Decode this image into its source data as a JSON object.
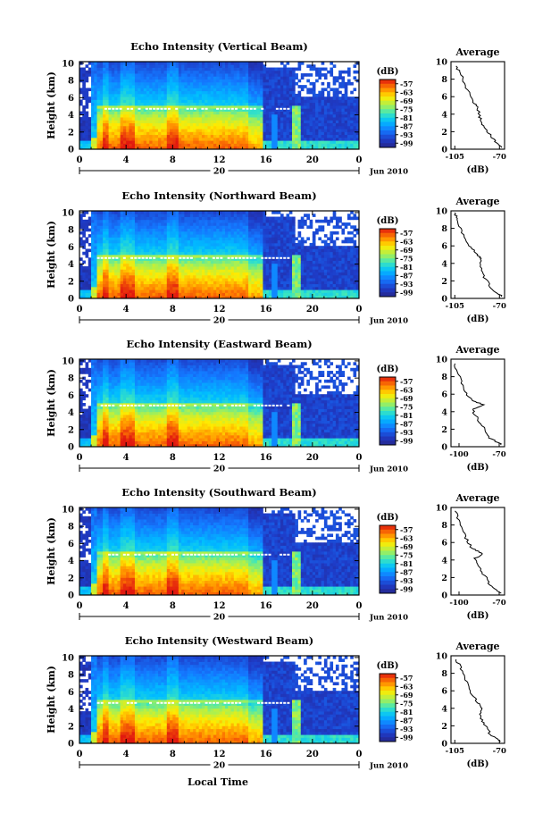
{
  "figure": {
    "y_axis_label": "Height (km)",
    "x_axis_label": "Local Time",
    "date_day": "20",
    "date_month_year": "Jun 2010",
    "colorbar_unit": "(dB)",
    "profile_title": "Average",
    "profile_xlabel": "(dB)"
  },
  "chart_data": [
    {
      "type": "heatmap",
      "title": "Echo Intensity (Vertical Beam)",
      "ylabel": "Height (km)",
      "x_ticks": [
        "0",
        "4",
        "8",
        "12",
        "16",
        "20",
        "0"
      ],
      "xlim": [
        0,
        24
      ],
      "y_ticks": [
        "0",
        "2",
        "4",
        "6",
        "8",
        "10"
      ],
      "ylim": [
        0,
        10.2
      ],
      "colorbar_ticks": [
        "-57",
        "-63",
        "-69",
        "-75",
        "-81",
        "-87",
        "-93",
        "-99"
      ],
      "colorbar_range": [
        -102,
        -54
      ],
      "bright_band_km": 4.7,
      "profile": {
        "title": "Average",
        "xlabel": "(dB)",
        "x_ticks": [
          "-105",
          "-70"
        ],
        "xlim": [
          -108,
          -66
        ],
        "y_ticks": [
          "0",
          "2",
          "4",
          "6",
          "8",
          "10"
        ],
        "ylim": [
          0,
          10
        ],
        "points": [
          [
            -67,
            0.2
          ],
          [
            -74,
            1.0
          ],
          [
            -79,
            2.0
          ],
          [
            -84,
            3.0
          ],
          [
            -86,
            4.0
          ],
          [
            -87,
            4.7
          ],
          [
            -91,
            5.5
          ],
          [
            -96,
            7.0
          ],
          [
            -100,
            8.5
          ],
          [
            -104,
            9.5
          ]
        ]
      }
    },
    {
      "type": "heatmap",
      "title": "Echo Intensity (Northward Beam)",
      "ylabel": "Height (km)",
      "x_ticks": [
        "0",
        "4",
        "8",
        "12",
        "16",
        "20",
        "0"
      ],
      "xlim": [
        0,
        24
      ],
      "y_ticks": [
        "0",
        "2",
        "4",
        "6",
        "8",
        "10"
      ],
      "ylim": [
        0,
        10.2
      ],
      "colorbar_ticks": [
        "-57",
        "-63",
        "-69",
        "-75",
        "-81",
        "-87",
        "-93",
        "-99"
      ],
      "colorbar_range": [
        -102,
        -54
      ],
      "bright_band_km": 4.7,
      "profile": {
        "title": "Average",
        "xlabel": "(dB)",
        "x_ticks": [
          "-105",
          "-70"
        ],
        "xlim": [
          -108,
          -66
        ],
        "y_ticks": [
          "0",
          "2",
          "4",
          "6",
          "8",
          "10"
        ],
        "ylim": [
          0,
          10
        ],
        "points": [
          [
            -68,
            0.2
          ],
          [
            -76,
            1.0
          ],
          [
            -80,
            2.0
          ],
          [
            -85,
            3.2
          ],
          [
            -84,
            4.5
          ],
          [
            -88,
            5.0
          ],
          [
            -93,
            6.0
          ],
          [
            -99,
            7.5
          ],
          [
            -103,
            9.0
          ],
          [
            -105,
            9.8
          ]
        ]
      }
    },
    {
      "type": "heatmap",
      "title": "Echo Intensity (Eastward Beam)",
      "ylabel": "Height (km)",
      "x_ticks": [
        "0",
        "4",
        "8",
        "12",
        "16",
        "20",
        "0"
      ],
      "xlim": [
        0,
        24
      ],
      "y_ticks": [
        "0",
        "2",
        "4",
        "6",
        "8",
        "10"
      ],
      "ylim": [
        0,
        10.2
      ],
      "colorbar_ticks": [
        "-57",
        "-63",
        "-69",
        "-75",
        "-81",
        "-87",
        "-93",
        "-99"
      ],
      "colorbar_range": [
        -102,
        -54
      ],
      "bright_band_km": 4.8,
      "profile": {
        "title": "Average",
        "xlabel": "(dB)",
        "x_ticks": [
          "-100",
          "-70"
        ],
        "xlim": [
          -106,
          -66
        ],
        "y_ticks": [
          "0",
          "2",
          "4",
          "6",
          "8",
          "10"
        ],
        "ylim": [
          0,
          10
        ],
        "points": [
          [
            -68,
            0.2
          ],
          [
            -77,
            1.0
          ],
          [
            -81,
            2.0
          ],
          [
            -86,
            3.2
          ],
          [
            -90,
            4.2
          ],
          [
            -82,
            4.8
          ],
          [
            -91,
            5.3
          ],
          [
            -96,
            6.5
          ],
          [
            -100,
            8.0
          ],
          [
            -103,
            9.5
          ]
        ]
      }
    },
    {
      "type": "heatmap",
      "title": "Echo Intensity (Southward Beam)",
      "ylabel": "Height (km)",
      "x_ticks": [
        "0",
        "4",
        "8",
        "12",
        "16",
        "20",
        "0"
      ],
      "xlim": [
        0,
        24
      ],
      "y_ticks": [
        "0",
        "2",
        "4",
        "6",
        "8",
        "10"
      ],
      "ylim": [
        0,
        10.2
      ],
      "colorbar_ticks": [
        "-57",
        "-63",
        "-69",
        "-75",
        "-81",
        "-87",
        "-93",
        "-99"
      ],
      "colorbar_range": [
        -102,
        -54
      ],
      "bright_band_km": 4.7,
      "profile": {
        "title": "Average",
        "xlabel": "(dB)",
        "x_ticks": [
          "-100",
          "-70"
        ],
        "xlim": [
          -106,
          -66
        ],
        "y_ticks": [
          "0",
          "2",
          "4",
          "6",
          "8",
          "10"
        ],
        "ylim": [
          0,
          10
        ],
        "points": [
          [
            -68,
            0.2
          ],
          [
            -76,
            1.0
          ],
          [
            -80,
            2.0
          ],
          [
            -85,
            3.2
          ],
          [
            -88,
            4.2
          ],
          [
            -82,
            4.7
          ],
          [
            -90,
            5.3
          ],
          [
            -95,
            6.5
          ],
          [
            -99,
            8.0
          ],
          [
            -103,
            9.6
          ]
        ]
      }
    },
    {
      "type": "heatmap",
      "title": "Echo Intensity (Westward Beam)",
      "ylabel": "Height (km)",
      "x_ticks": [
        "0",
        "4",
        "8",
        "12",
        "16",
        "20",
        "0"
      ],
      "xlim": [
        0,
        24
      ],
      "y_ticks": [
        "0",
        "2",
        "4",
        "6",
        "8",
        "10"
      ],
      "ylim": [
        0,
        10.2
      ],
      "colorbar_ticks": [
        "-57",
        "-63",
        "-69",
        "-75",
        "-81",
        "-87",
        "-93",
        "-99"
      ],
      "colorbar_range": [
        -102,
        -54
      ],
      "bright_band_km": 4.7,
      "profile": {
        "title": "Average",
        "xlabel": "(dB)",
        "x_ticks": [
          "-105",
          "-70"
        ],
        "xlim": [
          -108,
          -66
        ],
        "y_ticks": [
          "0",
          "2",
          "4",
          "6",
          "8",
          "10"
        ],
        "ylim": [
          0,
          10
        ],
        "points": [
          [
            -69,
            0.2
          ],
          [
            -77,
            1.0
          ],
          [
            -81,
            2.0
          ],
          [
            -85,
            3.0
          ],
          [
            -84,
            4.0
          ],
          [
            -87,
            4.6
          ],
          [
            -91,
            5.5
          ],
          [
            -96,
            7.0
          ],
          [
            -100,
            8.5
          ],
          [
            -104,
            9.6
          ]
        ]
      }
    }
  ]
}
